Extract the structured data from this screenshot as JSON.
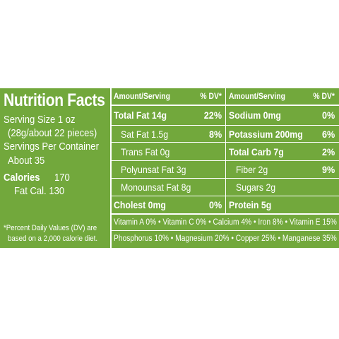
{
  "title": "Nutrition Facts",
  "serving_size_line1": "Serving Size 1 oz",
  "serving_size_line2": "(28g/about 22 pieces)",
  "servings_line1": "Servings Per Container",
  "servings_line2": "About 35",
  "calories_label": "Calories",
  "calories_value": "170",
  "fat_cal": "Fat Cal. 130",
  "footnote_line1": "*Percent Daily Values (DV) are",
  "footnote_line2": "based on a 2,000 calorie diet.",
  "headers": {
    "amount_left": "Amount/Serving",
    "dv_left": "% DV*",
    "amount_right": "Amount/Serving",
    "dv_right": "% DV*"
  },
  "left_col": [
    {
      "label": "Total Fat 14g",
      "dv": "22%"
    },
    {
      "label": "Sat Fat 1.5g",
      "dv": "8%"
    },
    {
      "label": "Trans Fat 0g",
      "dv": ""
    },
    {
      "label": "Polyunsat Fat 3g",
      "dv": ""
    },
    {
      "label": "Monounsat Fat 8g",
      "dv": ""
    },
    {
      "label": "Cholest 0mg",
      "dv": "0%"
    }
  ],
  "right_col": [
    {
      "label": "Sodium 0mg",
      "dv": "0%"
    },
    {
      "label": "Potassium 200mg",
      "dv": "6%"
    },
    {
      "label": "Total Carb 7g",
      "dv": "2%"
    },
    {
      "label": "Fiber 2g",
      "dv": "9%"
    },
    {
      "label": "Sugars 2g",
      "dv": ""
    },
    {
      "label": "Protein 5g",
      "dv": ""
    }
  ],
  "vitamins_line": "Vitamin A 0% • Vitamin C 0% • Calcium 4% • Iron 8% • Vitamin E 15%",
  "minerals_line": "Phosphorus 10% • Magnesium 20% • Copper 25% • Manganese 35%",
  "colors": {
    "background": "#72a83c",
    "text": "#ffffff"
  }
}
